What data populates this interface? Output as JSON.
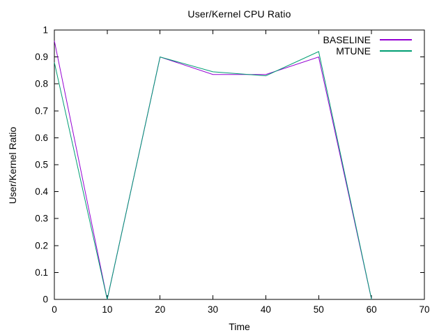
{
  "title": "User/Kernel CPU Ratio",
  "colors": {
    "background": "#ffffff",
    "axis": "#000000",
    "text": "#000000",
    "baseline_series": "#9400d3",
    "mtune_series": "#009e73"
  },
  "chart_data": {
    "type": "line",
    "title": "User/Kernel CPU Ratio",
    "xlabel": "Time",
    "ylabel": "User/Kernel Ratio",
    "x": [
      0,
      10,
      20,
      30,
      40,
      50,
      60
    ],
    "series": [
      {
        "name": "BASELINE",
        "color": "#9400d3",
        "values": [
          0.96,
          0,
          0.9,
          0.835,
          0.835,
          0.9,
          0
        ]
      },
      {
        "name": "MTUNE",
        "color": "#009e73",
        "values": [
          0.88,
          0,
          0.9,
          0.845,
          0.83,
          0.92,
          0
        ]
      }
    ],
    "xlim": [
      0,
      70
    ],
    "ylim": [
      0,
      1
    ],
    "xticks": {
      "values": [
        0,
        10,
        20,
        30,
        40,
        50,
        60,
        70
      ],
      "labels": [
        "0",
        "10",
        "20",
        "30",
        "40",
        "50",
        "60",
        "70"
      ]
    },
    "yticks": {
      "values": [
        0,
        0.1,
        0.2,
        0.3,
        0.4,
        0.5,
        0.6,
        0.7,
        0.8,
        0.9,
        1
      ],
      "labels": [
        "0",
        "0.1",
        "0.2",
        "0.3",
        "0.4",
        "0.5",
        "0.6",
        "0.7",
        "0.8",
        "0.9",
        "1"
      ]
    },
    "grid": false,
    "legend_position": "top-right",
    "tick_style": "inward-mirrored"
  }
}
